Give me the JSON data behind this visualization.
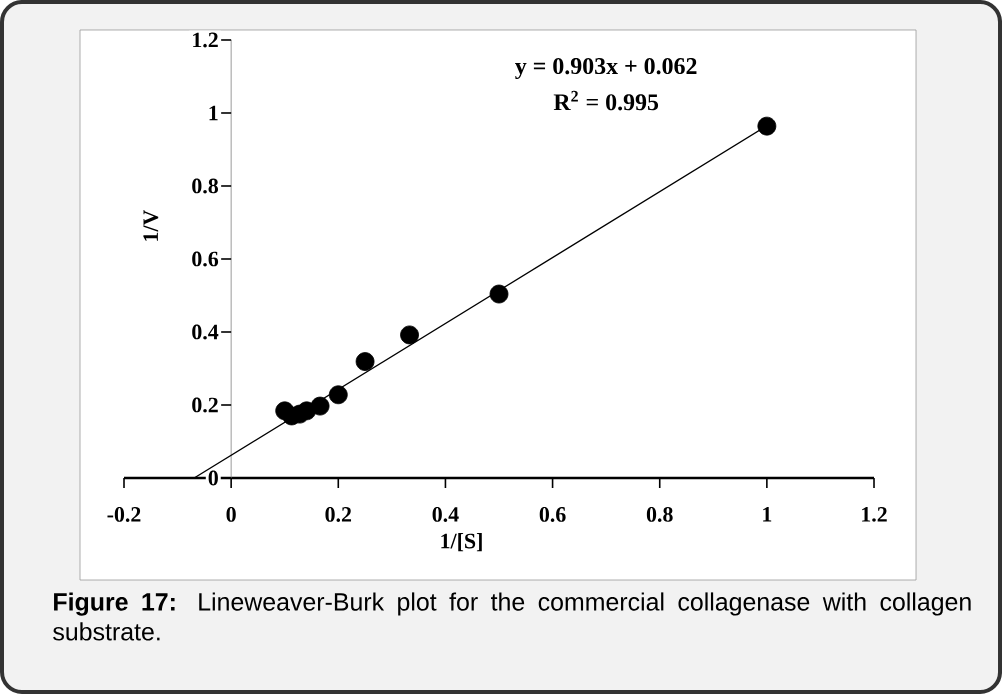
{
  "chart_data": {
    "type": "scatter",
    "xlabel": "1/[S]",
    "ylabel": "1/V",
    "annotations": [
      "y = 0.903x + 0.062",
      "R$^{2}$ = 0.995",
      "**Figure 17:** Lineweaver-Burk plot for the commercial collagenase with collagen substrate."
    ],
    "series": [
      {
        "type": "scatter",
        "color": "#000000",
        "marker": "circle",
        "x": [
          0.1,
          0.113,
          0.128,
          0.141,
          0.166,
          0.2,
          0.25,
          0.333,
          0.5,
          1
        ],
        "values": [
          0.184,
          0.17,
          0.175,
          0.184,
          0.197,
          0.228,
          0.319,
          0.392,
          0.504,
          0.964
        ]
      },
      {
        "type": "line",
        "color": "#000000",
        "marker": "none",
        "x": [
          -0.069,
          1
        ],
        "values": [
          0,
          0.965
        ]
      }
    ],
    "xlim": [
      -0.2,
      1.2
    ],
    "ylim": [
      0,
      1.2
    ],
    "xticks": [
      -0.2,
      0,
      0.2,
      0.4,
      0.6,
      0.8,
      1,
      1.2
    ],
    "yticks": [
      0,
      0.2,
      0.4,
      0.6,
      0.8,
      1,
      1.2
    ],
    "grid": false
  }
}
